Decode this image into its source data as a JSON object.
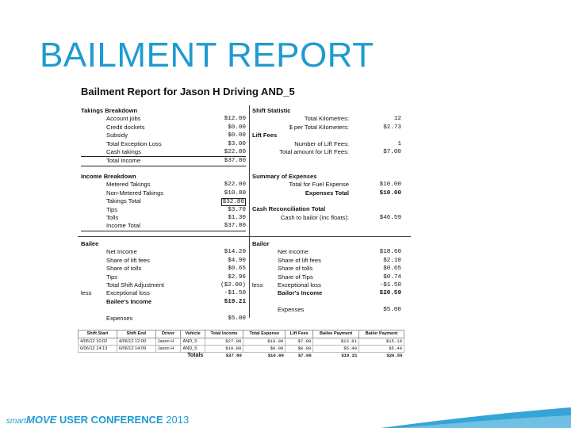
{
  "slide_title": "BAILMENT REPORT",
  "report": {
    "title": "Bailment Report for Jason H Driving AND_5",
    "takings": {
      "heading": "Takings Breakdown",
      "rows": [
        {
          "label": "Account jobs",
          "value": "$12.00"
        },
        {
          "label": "Credit dockets",
          "value": "$0.00"
        },
        {
          "label": "Subsidy",
          "value": "$0.00"
        },
        {
          "label": "Total Exception Loss",
          "value": "$3.00"
        },
        {
          "label": "Cash takings",
          "value": "$22.80"
        },
        {
          "label": "Total Income",
          "value": "$37.80"
        }
      ]
    },
    "shift_statistic": {
      "heading": "Shift Statistic",
      "rows": [
        {
          "label": "Total Kilometres:",
          "value": "12"
        },
        {
          "label": "$ per Total Kilometers:",
          "value": "$2.73"
        }
      ]
    },
    "lift_fees": {
      "heading": "Lift Fees",
      "rows": [
        {
          "label": "Number of Lift Fees:",
          "value": "1"
        },
        {
          "label": "Total amount for Lift Fees:",
          "value": "$7.00"
        }
      ]
    },
    "income": {
      "heading": "Income Breakdown",
      "rows": [
        {
          "label": "Metered Takings",
          "value": "$22.00"
        },
        {
          "label": "Non-Metered Takings",
          "value": "$10.80"
        },
        {
          "label": "Takings Total",
          "value": "$32.80"
        },
        {
          "label": "Tips",
          "value": "$3.70"
        },
        {
          "label": "Tolls",
          "value": "$1.30"
        },
        {
          "label": "Income Total",
          "value": "$37.80"
        }
      ]
    },
    "expenses": {
      "heading": "Summary of Expenses",
      "rows": [
        {
          "label": "Total for Fuel Expense",
          "value": "$10.00"
        },
        {
          "label": "Expenses Total",
          "value": "$10.00"
        }
      ]
    },
    "cash_rec": {
      "heading": "Cash Reconciliation Total",
      "rows": [
        {
          "label": "Cash to bailor (inc floats):",
          "value": "$46.59"
        }
      ]
    },
    "bailee": {
      "heading": "Bailee",
      "rows": [
        {
          "pre": "",
          "label": "Net Income",
          "value": "$14.20"
        },
        {
          "pre": "",
          "label": "Share of lift fees",
          "value": "$4.90"
        },
        {
          "pre": "",
          "label": "Share of tolls",
          "value": "$0.65"
        },
        {
          "pre": "",
          "label": "Tips",
          "value": "$2.96"
        },
        {
          "pre": "",
          "label": "Total Shift Adjustment",
          "value": "($2.00)"
        },
        {
          "pre": "less",
          "label": "Exceptional loss",
          "value": "-$1.50"
        },
        {
          "pre": "",
          "label": "Bailee's Income",
          "value": "$19.21"
        },
        {
          "pre": "",
          "label": "",
          "value": ""
        },
        {
          "pre": "",
          "label": "Expenses",
          "value": "$5.00"
        }
      ]
    },
    "bailor": {
      "heading": "Bailor",
      "rows": [
        {
          "pre": "",
          "label": "Net Income",
          "value": "$18.60"
        },
        {
          "pre": "",
          "label": "Share of lift fees",
          "value": "$2.10"
        },
        {
          "pre": "",
          "label": "Share of tolls",
          "value": "$0.65"
        },
        {
          "pre": "",
          "label": "Share of Tips",
          "value": "$0.74"
        },
        {
          "pre": "less",
          "label": "Exceptional loss",
          "value": "-$1.50"
        },
        {
          "pre": "",
          "label": "Bailor's Income",
          "value": "$20.59"
        },
        {
          "pre": "",
          "label": "",
          "value": ""
        },
        {
          "pre": "",
          "label": "Expenses",
          "value": "$5.00"
        }
      ]
    },
    "table": {
      "headers": [
        "Shift Start",
        "Shift End",
        "Driver",
        "Vehicle",
        "Total Income",
        "Total Expense",
        "Lift Fees",
        "Bailee Payment",
        "Bailor Payment"
      ],
      "rows": [
        [
          "4/06/12 10:02",
          "4/06/12 12:00",
          "Jason H",
          "AND_5",
          "$27.00",
          "$10.00",
          "$7.00",
          "$13.81",
          "$15.19"
        ],
        [
          "6/06/12 14:13",
          "6/06/12 14:09",
          "Jason H",
          "AND_5",
          "$10.80",
          "$0.00",
          "$0.00",
          "$5.40",
          "$5.40"
        ]
      ],
      "totals_label": "Totals",
      "totals": [
        "$37.80",
        "$10.00",
        "$7.00",
        "$19.21",
        "$20.59"
      ]
    }
  },
  "footer": {
    "brand_prefix": "smart",
    "brand_main": "MOVE",
    "conference": "USER CONFERENCE",
    "year": "2013"
  }
}
